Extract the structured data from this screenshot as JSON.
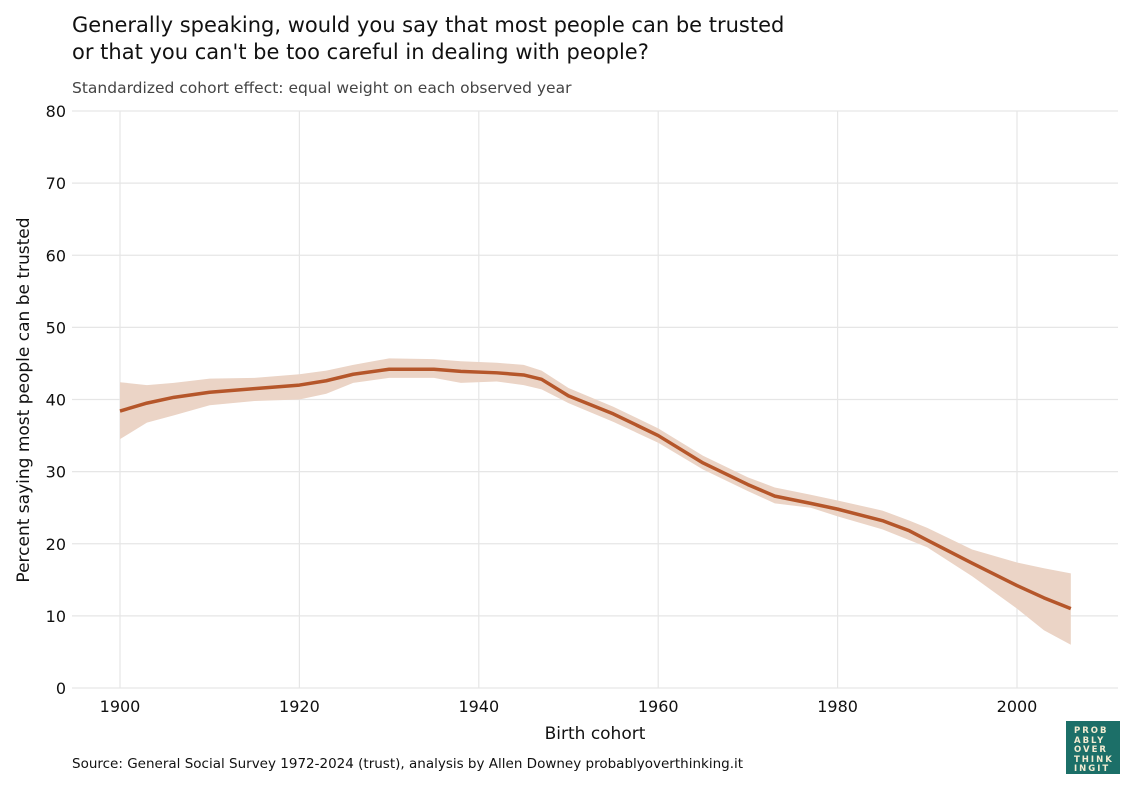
{
  "chart_data": {
    "type": "line",
    "title": "Generally speaking, would you say that most people can be trusted or that you can't be too careful in dealing with people?",
    "title_lines": [
      "Generally speaking, would you say that most people can be trusted",
      "or that you can't be too careful in dealing with people?"
    ],
    "subtitle": "Standardized cohort effect: equal weight on each observed year",
    "xlabel": "Birth cohort",
    "ylabel": "Percent saying most people can be trusted",
    "xlim": [
      1895,
      2011
    ],
    "ylim": [
      0,
      80
    ],
    "xticks": [
      1900,
      1920,
      1940,
      1960,
      1980,
      2000
    ],
    "yticks": [
      0,
      10,
      20,
      30,
      40,
      50,
      60,
      70,
      80
    ],
    "grid": true,
    "colors": {
      "line": "#b5562a",
      "band": "#ebd4c6",
      "grid": "#e6e6e6"
    },
    "x": [
      1900,
      1903,
      1906,
      1910,
      1915,
      1920,
      1923,
      1926,
      1930,
      1935,
      1938,
      1942,
      1945,
      1947,
      1950,
      1955,
      1960,
      1965,
      1970,
      1973,
      1977,
      1980,
      1985,
      1988,
      1990,
      1995,
      2000,
      2003,
      2006
    ],
    "series": [
      {
        "values": [
          38.4,
          39.5,
          40.3,
          41,
          41.5,
          42,
          42.6,
          43.5,
          44.2,
          44.2,
          43.9,
          43.7,
          43.4,
          42.8,
          40.5,
          38,
          35,
          31.2,
          28.2,
          26.6,
          25.6,
          24.8,
          23.2,
          21.8,
          20.5,
          17.3,
          14.2,
          12.5,
          11
        ],
        "lower": [
          34.5,
          36.8,
          37.8,
          39.2,
          39.8,
          40,
          40.8,
          42.3,
          43,
          43,
          42.3,
          42.5,
          42,
          41.4,
          39.5,
          36.9,
          34,
          30.3,
          27.3,
          25.6,
          25,
          23.8,
          22,
          20.5,
          19.5,
          15.5,
          11,
          8,
          6
        ],
        "upper": [
          42.4,
          42,
          42.3,
          42.9,
          43,
          43.5,
          44,
          44.8,
          45.7,
          45.6,
          45.3,
          45.1,
          44.8,
          44,
          41.6,
          39,
          36,
          32.2,
          29.2,
          27.8,
          26.8,
          26,
          24.6,
          23.2,
          22.2,
          19.2,
          17.4,
          16.6,
          15.9
        ]
      }
    ]
  },
  "source": "Source: General Social Survey 1972-2024 (trust), analysis by Allen Downey probablyoverthinking.it",
  "logo": {
    "lines": [
      "PROB",
      "ABLY",
      "OVER",
      "THINK",
      "INGIT"
    ]
  }
}
